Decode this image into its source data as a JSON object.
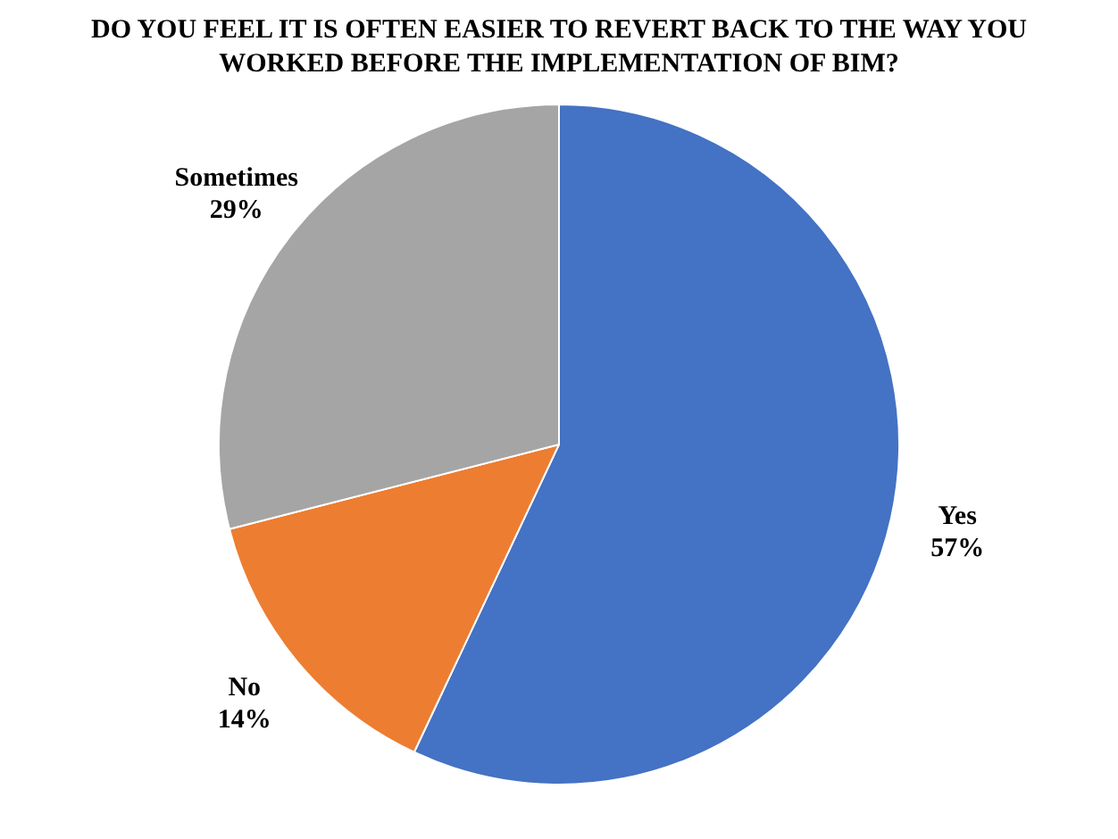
{
  "chart_data": {
    "type": "pie",
    "title": "DO YOU FEEL IT IS OFTEN EASIER TO REVERT BACK TO THE WAY YOU WORKED BEFORE THE IMPLEMENTATION OF BIM?",
    "categories": [
      "Yes",
      "No",
      "Sometimes"
    ],
    "values": [
      57,
      14,
      29
    ],
    "value_labels": [
      "57%",
      "14%",
      "29%"
    ],
    "colors": [
      "#4472c4",
      "#ed7d31",
      "#a5a5a5"
    ],
    "legend": false
  }
}
